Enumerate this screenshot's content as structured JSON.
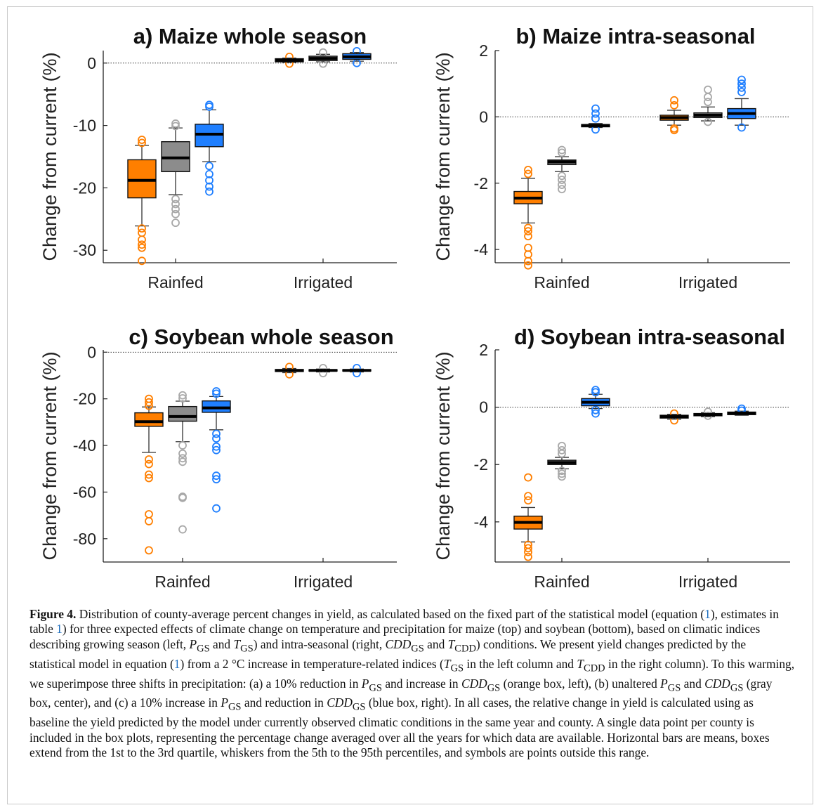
{
  "colors": {
    "orange": "#ff7f00",
    "gray": "#8c8c8c",
    "blue": "#1f7fff",
    "outlier_gray": "#a8a8a8",
    "orange_pale": "#b06c44",
    "gray_pale": "#7a7a7a",
    "blue_pale": "#1c62c8"
  },
  "chart_data": [
    {
      "type": "box",
      "title": "a) Maize whole season",
      "ylabel": "Change from current (%)",
      "ylim": [
        -32,
        2
      ],
      "yticks": [
        0,
        -10,
        -20,
        -30
      ],
      "ytick_labels": [
        "0",
        "-10",
        "-20",
        "-30"
      ],
      "categories": [
        "Rainfed",
        "Irrigated"
      ],
      "reference_line": 0,
      "groups": [
        {
          "category": "Rainfed",
          "boxes": [
            {
              "scenario": "orange",
              "q1": -21.6,
              "q3": -15.5,
              "mean": -18.8,
              "whisker_low": -26.1,
              "whisker_high": -13.2,
              "outliers": [
                -12.3,
                -12.8,
                -26.5,
                -27.2,
                -28.3,
                -29.1,
                -29.6,
                -31.7
              ]
            },
            {
              "scenario": "gray",
              "q1": -17.4,
              "q3": -12.6,
              "mean": -15.2,
              "whisker_low": -21.1,
              "whisker_high": -10.4,
              "outliers": [
                -9.7,
                -10.1,
                -21.8,
                -22.6,
                -23.4,
                -24.2,
                -25.6
              ]
            },
            {
              "scenario": "blue",
              "q1": -13.4,
              "q3": -9.8,
              "mean": -11.4,
              "whisker_low": -15.8,
              "whisker_high": -7.5,
              "outliers": [
                -6.7,
                -7.0,
                -16.5,
                -17.8,
                -18.8,
                -19.8,
                -20.6
              ]
            }
          ]
        },
        {
          "category": "Irrigated",
          "boxes": [
            {
              "scenario": "orange",
              "q1": 0.2,
              "q3": 0.7,
              "mean": 0.45,
              "whisker_low": 0.1,
              "whisker_high": 0.8,
              "outliers": [
                -0.1,
                1.0
              ]
            },
            {
              "scenario": "gray",
              "q1": 0.4,
              "q3": 1.1,
              "mean": 0.75,
              "whisker_low": 0.2,
              "whisker_high": 1.4,
              "outliers": [
                -0.1,
                1.7
              ]
            },
            {
              "scenario": "blue",
              "q1": 0.6,
              "q3": 1.5,
              "mean": 1.0,
              "whisker_low": 0.3,
              "whisker_high": 1.7,
              "outliers": [
                0.0,
                1.9
              ]
            }
          ]
        }
      ]
    },
    {
      "type": "box",
      "title": "b) Maize intra-seasonal",
      "ylabel": "Change from current (%)",
      "ylim": [
        -4.4,
        2
      ],
      "yticks": [
        2,
        0,
        -2,
        -4
      ],
      "ytick_labels": [
        "2",
        "0",
        "-2",
        "-4"
      ],
      "categories": [
        "Rainfed",
        "Irrigated"
      ],
      "reference_line": 0,
      "groups": [
        {
          "category": "Rainfed",
          "boxes": [
            {
              "scenario": "orange",
              "q1": -2.62,
              "q3": -2.25,
              "mean": -2.45,
              "whisker_low": -3.2,
              "whisker_high": -1.85,
              "outliers": [
                -1.6,
                -1.72,
                -3.35,
                -3.45,
                -3.6,
                -3.95,
                -4.15,
                -4.35,
                -4.48
              ]
            },
            {
              "scenario": "gray",
              "q1": -1.44,
              "q3": -1.3,
              "mean": -1.36,
              "whisker_low": -1.65,
              "whisker_high": -1.2,
              "outliers": [
                -1.0,
                -1.08,
                -1.78,
                -1.9,
                -2.05,
                -2.18
              ]
            },
            {
              "scenario": "blue",
              "q1": -0.3,
              "q3": -0.23,
              "mean": -0.26,
              "whisker_low": -0.32,
              "whisker_high": -0.2,
              "outliers": [
                0.25,
                0.1,
                -0.05,
                -0.38
              ]
            }
          ]
        },
        {
          "category": "Irrigated",
          "boxes": [
            {
              "scenario": "orange",
              "q1": -0.1,
              "q3": 0.05,
              "mean": -0.02,
              "whisker_low": -0.25,
              "whisker_high": 0.2,
              "outliers": [
                0.5,
                0.35,
                -0.35,
                -0.4
              ]
            },
            {
              "scenario": "gray",
              "q1": -0.02,
              "q3": 0.12,
              "mean": 0.05,
              "whisker_low": -0.12,
              "whisker_high": 0.3,
              "outliers": [
                0.82,
                0.6,
                0.45,
                -0.15
              ]
            },
            {
              "scenario": "blue",
              "q1": -0.05,
              "q3": 0.25,
              "mean": 0.1,
              "whisker_low": -0.25,
              "whisker_high": 0.55,
              "outliers": [
                1.12,
                1.0,
                0.88,
                0.75,
                -0.32
              ]
            }
          ]
        }
      ]
    },
    {
      "type": "box",
      "title": "c) Soybean whole season",
      "ylabel": "Change from current (%)",
      "ylim": [
        -90,
        1
      ],
      "yticks": [
        0,
        -20,
        -40,
        -60,
        -80
      ],
      "ytick_labels": [
        "0",
        "-20",
        "-40",
        "-60",
        "-80"
      ],
      "categories": [
        "Rainfed",
        "Irrigated"
      ],
      "reference_line": 0,
      "groups": [
        {
          "category": "Rainfed",
          "boxes": [
            {
              "scenario": "orange",
              "q1": -31.8,
              "q3": -26.0,
              "mean": -29.8,
              "whisker_low": -43.0,
              "whisker_high": -23.5,
              "outliers": [
                -20.0,
                -21.5,
                -23.0,
                -46.0,
                -48.0,
                -52.5,
                -54.0,
                -69.5,
                -72.5,
                -85.0
              ]
            },
            {
              "scenario": "gray",
              "q1": -29.6,
              "q3": -23.3,
              "mean": -27.6,
              "whisker_low": -38.4,
              "whisker_high": -21.0,
              "outliers": [
                -18.5,
                -19.8,
                -40.0,
                -43.5,
                -45.5,
                -47.0,
                -62.0,
                -62.5,
                -76.0
              ]
            },
            {
              "scenario": "blue",
              "q1": -25.8,
              "q3": -20.9,
              "mean": -23.9,
              "whisker_low": -33.3,
              "whisker_high": -19.0,
              "outliers": [
                -16.8,
                -17.8,
                -35.0,
                -37.0,
                -40.5,
                -42.0,
                -53.0,
                -54.5,
                -67.0
              ]
            }
          ]
        },
        {
          "category": "Irrigated",
          "boxes": [
            {
              "scenario": "orange",
              "q1": -8.3,
              "q3": -7.4,
              "mean": -7.9,
              "whisker_low": -8.8,
              "whisker_high": -7.0,
              "outliers": [
                -6.3,
                -9.5
              ]
            },
            {
              "scenario": "gray",
              "q1": -8.1,
              "q3": -7.5,
              "mean": -7.8,
              "whisker_low": -8.5,
              "whisker_high": -7.2,
              "outliers": [
                -6.8,
                -9.0
              ]
            },
            {
              "scenario": "blue",
              "q1": -8.1,
              "q3": -7.5,
              "mean": -7.8,
              "whisker_low": -8.5,
              "whisker_high": -7.2,
              "outliers": [
                -6.8,
                -9.0
              ]
            }
          ]
        }
      ]
    },
    {
      "type": "box",
      "title": "d) Soybean intra-seasonal",
      "ylabel": "Change from current (%)",
      "ylim": [
        -5.4,
        2
      ],
      "yticks": [
        2,
        0,
        -2,
        -4
      ],
      "ytick_labels": [
        "2",
        "0",
        "-2",
        "-4"
      ],
      "categories": [
        "Rainfed",
        "Irrigated"
      ],
      "reference_line": 0,
      "groups": [
        {
          "category": "Rainfed",
          "boxes": [
            {
              "scenario": "orange",
              "q1": -4.25,
              "q3": -3.8,
              "mean": -4.02,
              "whisker_low": -4.7,
              "whisker_high": -3.5,
              "outliers": [
                -2.45,
                -3.1,
                -3.25,
                -4.8,
                -4.92,
                -5.05,
                -5.22
              ]
            },
            {
              "scenario": "gray",
              "q1": -2.0,
              "q3": -1.85,
              "mean": -1.93,
              "whisker_low": -2.15,
              "whisker_high": -1.75,
              "outliers": [
                -1.35,
                -1.5,
                -1.62,
                -2.22,
                -2.32,
                -2.42
              ]
            },
            {
              "scenario": "blue",
              "q1": 0.05,
              "q3": 0.3,
              "mean": 0.17,
              "whisker_low": -0.05,
              "whisker_high": 0.45,
              "outliers": [
                0.6,
                0.52,
                -0.1,
                -0.22
              ]
            }
          ]
        },
        {
          "category": "Irrigated",
          "boxes": [
            {
              "scenario": "orange",
              "q1": -0.38,
              "q3": -0.28,
              "mean": -0.33,
              "whisker_low": -0.42,
              "whisker_high": -0.25,
              "outliers": [
                -0.22,
                -0.46
              ]
            },
            {
              "scenario": "gray",
              "q1": -0.3,
              "q3": -0.22,
              "mean": -0.26,
              "whisker_low": -0.33,
              "whisker_high": -0.19,
              "outliers": [
                -0.16,
                -0.3
              ]
            },
            {
              "scenario": "blue",
              "q1": -0.26,
              "q3": -0.17,
              "mean": -0.21,
              "whisker_low": -0.28,
              "whisker_high": -0.14,
              "outliers": [
                -0.05,
                -0.12
              ]
            }
          ]
        }
      ]
    }
  ],
  "caption": {
    "label": "Figure 4.",
    "parts": [
      " Distribution of county-average percent changes in yield, as calculated based on the fixed part of the statistical model (equation (",
      "1",
      "), estimates in table ",
      "1",
      ") for three expected effects of climate change on temperature and precipitation for maize (top) and soybean (bottom), based on climatic indices describing growing season (left, ",
      "P",
      "GS",
      " and ",
      "T",
      "GS",
      ") and intra-seasonal (right, ",
      "CDD",
      "GS",
      " and ",
      "T",
      "CDD",
      ") conditions. We present yield changes predicted by the statistical model in equation (",
      "1",
      ") from a 2 °C increase in temperature-related indices (",
      "T",
      "GS",
      " in the left column and ",
      "T",
      "CDD",
      " in the right column). To this warming, we superimpose three shifts in precipitation: (a) a 10% reduction in ",
      "P",
      "GS",
      " and increase in ",
      "CDD",
      "GS",
      " (orange box, left), (b) unaltered ",
      "P",
      "GS",
      " and ",
      "CDD",
      "GS",
      " (gray box, center), and (c) a 10% increase in ",
      "P",
      "GS",
      " and reduction in ",
      "CDD",
      "GS",
      " (blue box, right). In all cases, the relative change in yield is calculated using as baseline the yield predicted by the model under currently observed climatic conditions in the same year and county. A single data point per county is included in the box plots, representing the percentage change averaged over all the years for which data are available. Horizontal bars are means, boxes extend from the 1st to the 3rd quartile, whiskers from the 5th to the 95th percentiles, and symbols are points outside this range."
    ]
  }
}
